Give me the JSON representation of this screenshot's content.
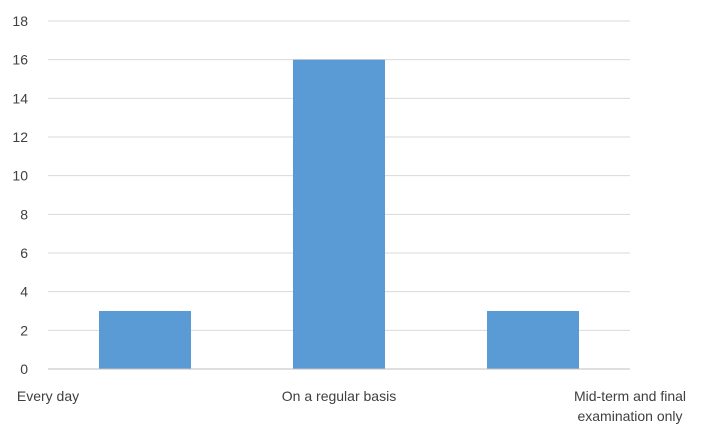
{
  "chart_data": {
    "type": "bar",
    "categories": [
      "Every day",
      "On a regular basis",
      "Mid-term and final examination only"
    ],
    "category_label_lines": [
      [
        "Every day"
      ],
      [
        "On a regular basis"
      ],
      [
        "Mid-term and final",
        "examination only"
      ]
    ],
    "values": [
      3,
      16,
      3
    ],
    "title": "",
    "xlabel": "",
    "ylabel": "",
    "ylim": [
      0,
      18
    ],
    "y_ticks": [
      0,
      2,
      4,
      6,
      8,
      10,
      12,
      14,
      16,
      18
    ],
    "grid": true,
    "legend": "none",
    "bar_color": "#5B9BD5",
    "grid_color": "#D9D9D9",
    "axis_color": "#BFBFBF",
    "text_color": "#404040"
  }
}
